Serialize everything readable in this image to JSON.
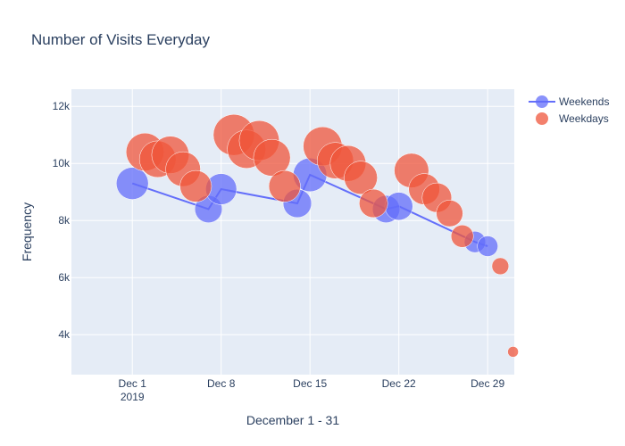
{
  "chart_data": {
    "type": "scatter",
    "title": "Number of Visits Everyday",
    "xlabel": "December 1 - 31",
    "ylabel": "Frequency",
    "xlim": [
      -3.8,
      31.1
    ],
    "ylim": [
      2600,
      12600
    ],
    "x_ticks": [
      {
        "day": 1,
        "label": "Dec 1",
        "sublabel": "2019"
      },
      {
        "day": 8,
        "label": "Dec 8",
        "sublabel": ""
      },
      {
        "day": 15,
        "label": "Dec 15",
        "sublabel": ""
      },
      {
        "day": 22,
        "label": "Dec 22",
        "sublabel": ""
      },
      {
        "day": 29,
        "label": "Dec 29",
        "sublabel": ""
      }
    ],
    "y_ticks": [
      {
        "value": 4000,
        "label": "4k"
      },
      {
        "value": 6000,
        "label": "6k"
      },
      {
        "value": 8000,
        "label": "8k"
      },
      {
        "value": 10000,
        "label": "10k"
      },
      {
        "value": 12000,
        "label": "12k"
      }
    ],
    "grid": true,
    "legend_position": "top-right",
    "series": [
      {
        "name": "Weekends",
        "mode": "lines+markers",
        "color": "#636efa",
        "days": [
          1,
          7,
          8,
          14,
          15,
          21,
          22,
          28,
          29
        ],
        "values": [
          9300,
          8400,
          9100,
          8600,
          9600,
          8400,
          8500,
          7250,
          7100
        ]
      },
      {
        "name": "Weekdays",
        "mode": "markers",
        "color": "#ef553b",
        "days": [
          2,
          3,
          4,
          5,
          6,
          9,
          10,
          11,
          12,
          13,
          16,
          17,
          18,
          19,
          20,
          23,
          24,
          25,
          26,
          27,
          30,
          31
        ],
        "values": [
          10400,
          10150,
          10300,
          9800,
          9200,
          11000,
          10500,
          10800,
          10200,
          9200,
          10600,
          10100,
          10000,
          9500,
          8600,
          9750,
          9100,
          8800,
          8250,
          7450,
          6400,
          3400
        ]
      }
    ]
  }
}
